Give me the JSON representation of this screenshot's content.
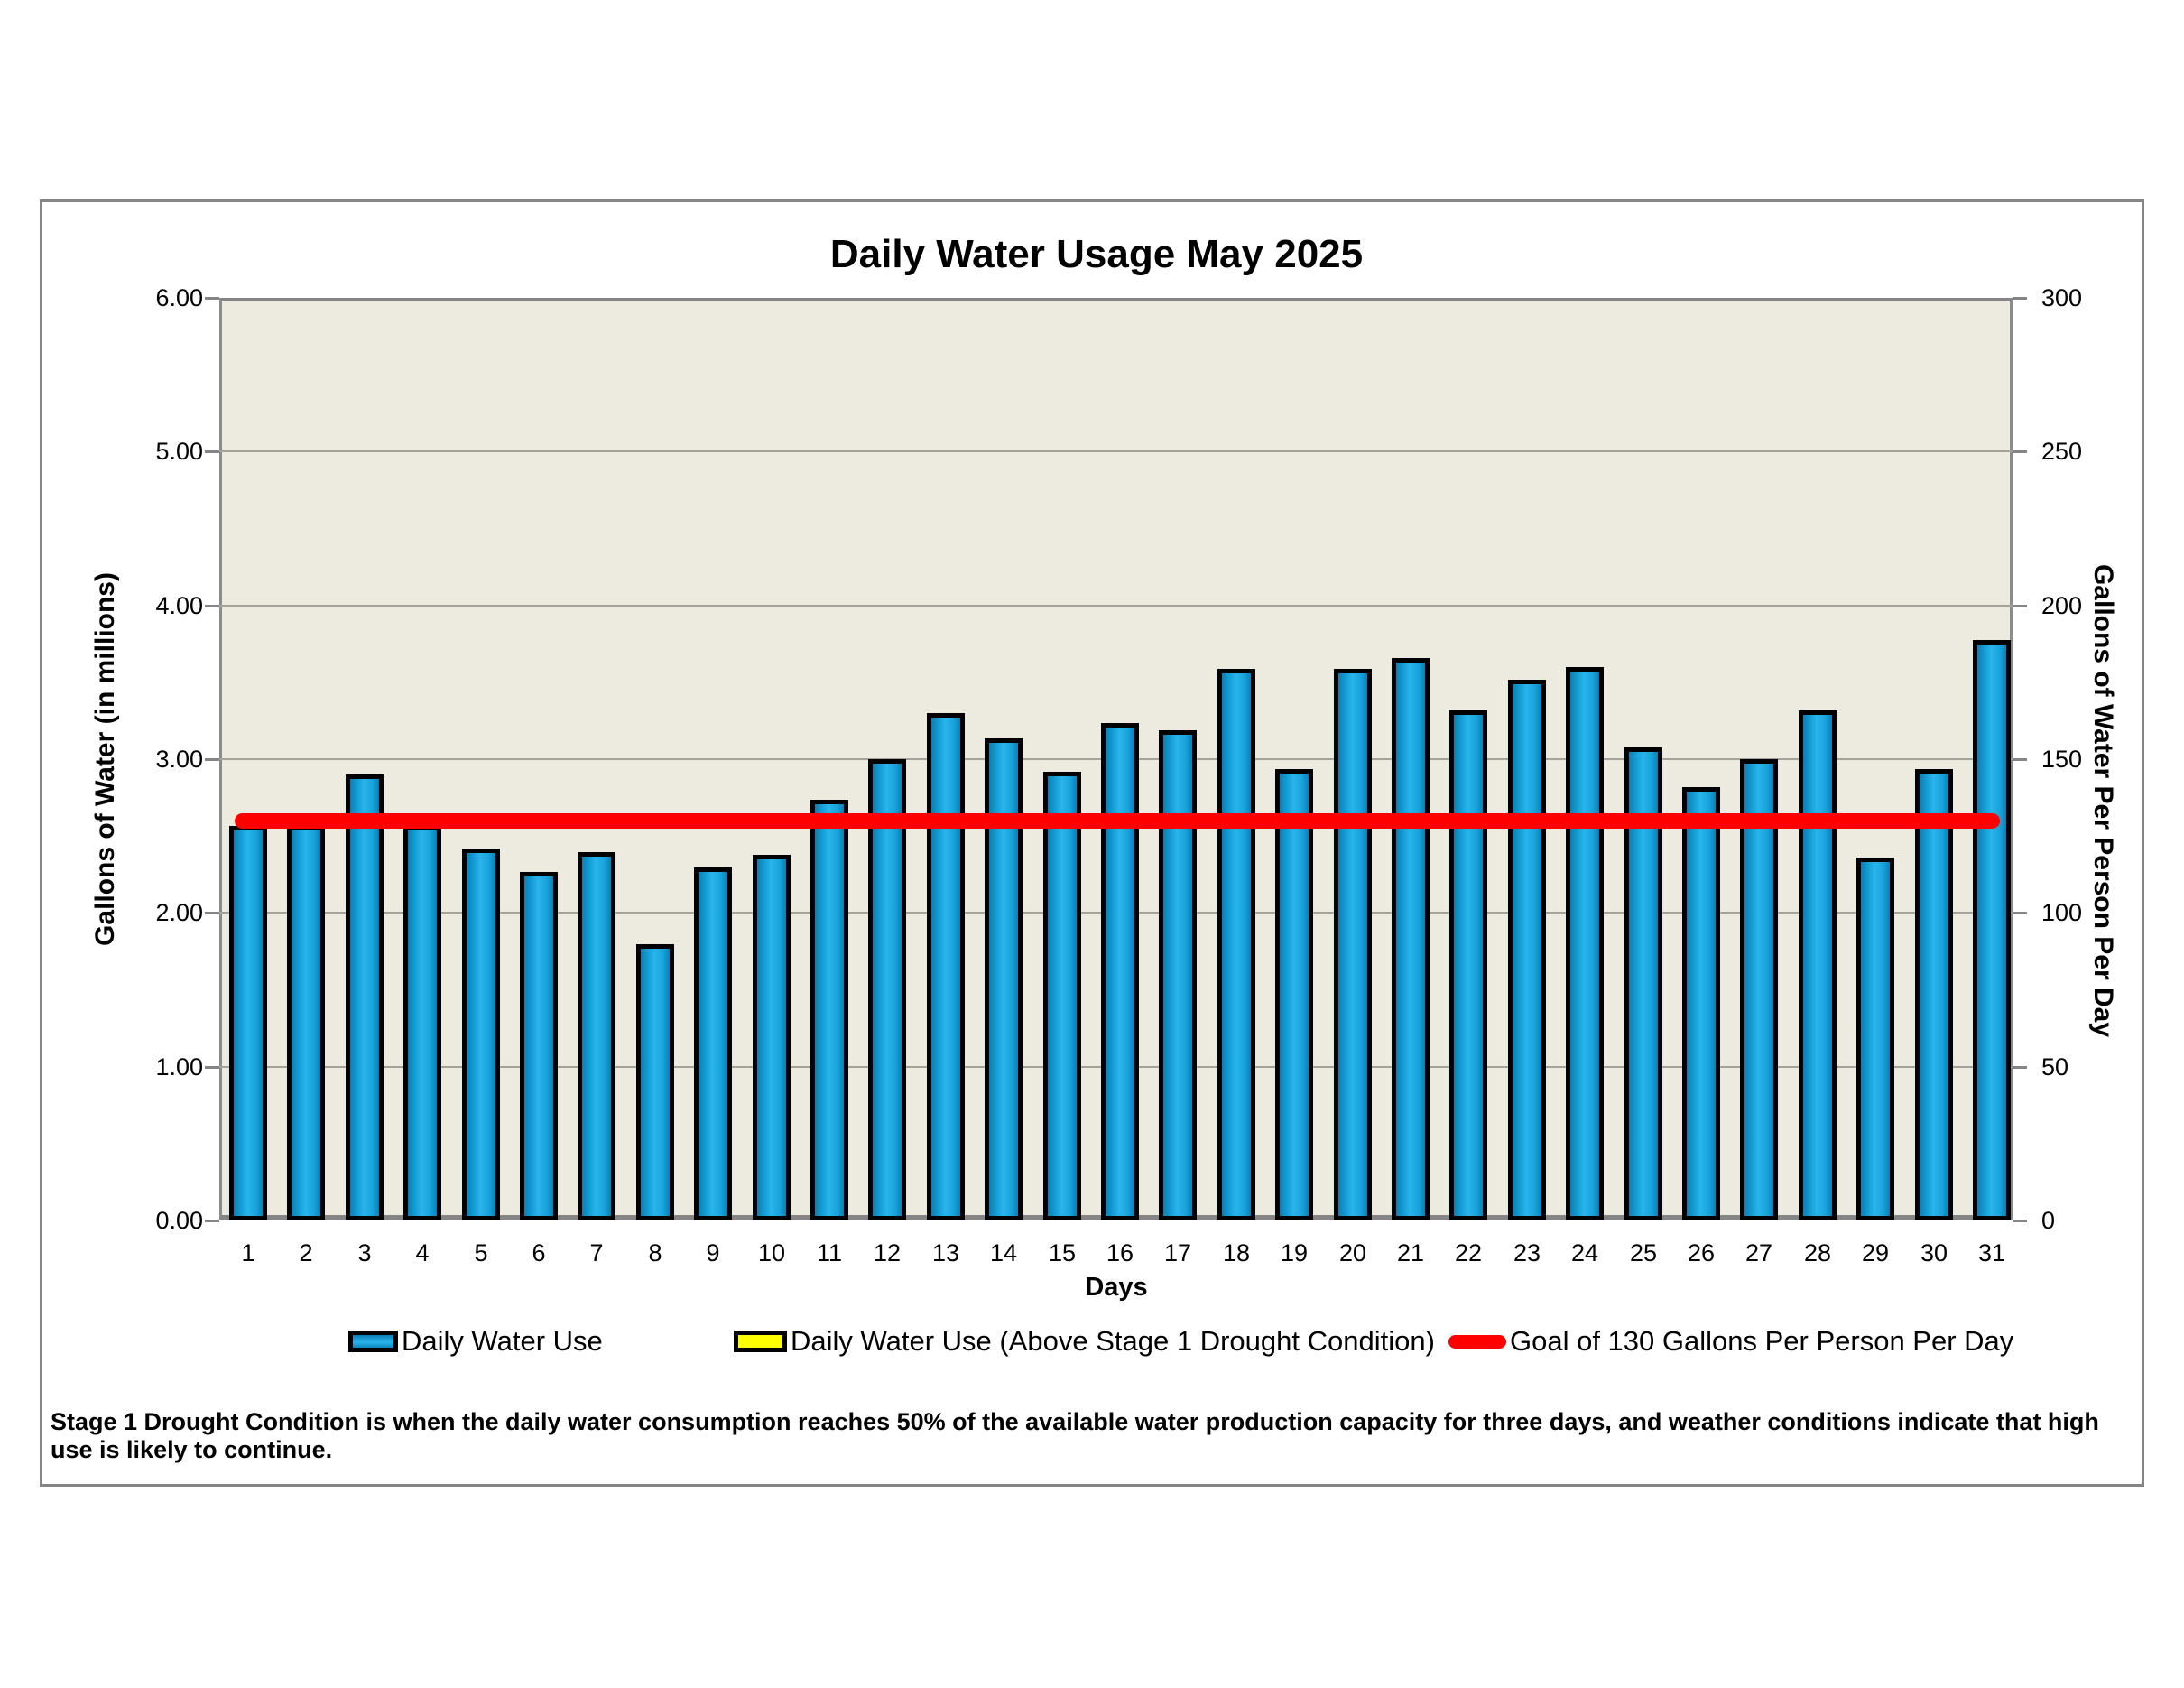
{
  "chart": {
    "title": "Daily Water Usage May 2025",
    "x_axis_title": "Days",
    "y_left_title": "Gallons of Water (in millions)",
    "y_right_title": "Gallons of Water Per Person Per Day",
    "footer": "Stage 1 Drought Condition is when the daily water consumption reaches 50% of the available water production capacity for three days, and weather conditions indicate that high use is likely to continue.",
    "legend": {
      "item1_label": "Daily Water Use",
      "item2_label": "Daily Water Use (Above Stage 1 Drought Condition)",
      "item3_label": "Goal of 130 Gallons Per Person Per Day"
    },
    "colors": {
      "bar_fill": "#1fa7e0",
      "bar_border": "#000000",
      "above_stage1_fill": "#ffff00",
      "goal_line": "#fe0000",
      "plot_background": "#edebe0",
      "gridline": "#a4a29a",
      "axis": "#858585"
    }
  },
  "chart_data": {
    "type": "bar",
    "title": "Daily Water Usage May 2025",
    "xlabel": "Days",
    "ylabel_left": "Gallons of Water (in millions)",
    "ylabel_right": "Gallons of Water Per Person Per Day",
    "categories": [
      1,
      2,
      3,
      4,
      5,
      6,
      7,
      8,
      9,
      10,
      11,
      12,
      13,
      14,
      15,
      16,
      17,
      18,
      19,
      20,
      21,
      22,
      23,
      24,
      25,
      26,
      27,
      28,
      29,
      30,
      31
    ],
    "series": [
      {
        "name": "Daily Water Use",
        "values": [
          2.55,
          2.55,
          2.88,
          2.55,
          2.4,
          2.25,
          2.38,
          1.78,
          2.28,
          2.36,
          2.72,
          2.98,
          3.28,
          3.12,
          2.9,
          3.22,
          3.17,
          3.57,
          2.92,
          3.57,
          3.64,
          3.3,
          3.5,
          3.58,
          3.06,
          2.8,
          2.98,
          3.3,
          2.34,
          2.92,
          3.76
        ]
      },
      {
        "name": "Daily Water Use (Above Stage 1 Drought Condition)",
        "values": []
      }
    ],
    "goal_line": {
      "name": "Goal of 130 Gallons Per Person Per Day",
      "value_left_axis": 2.6,
      "value_right_axis": 130
    },
    "ylim_left": [
      0,
      6
    ],
    "ylim_right": [
      0,
      300
    ],
    "left_ticks": [
      "0.00",
      "1.00",
      "2.00",
      "3.00",
      "4.00",
      "5.00",
      "6.00"
    ],
    "right_ticks": [
      "0",
      "50",
      "100",
      "150",
      "200",
      "250",
      "300"
    ],
    "grid": true,
    "legend_position": "bottom"
  }
}
